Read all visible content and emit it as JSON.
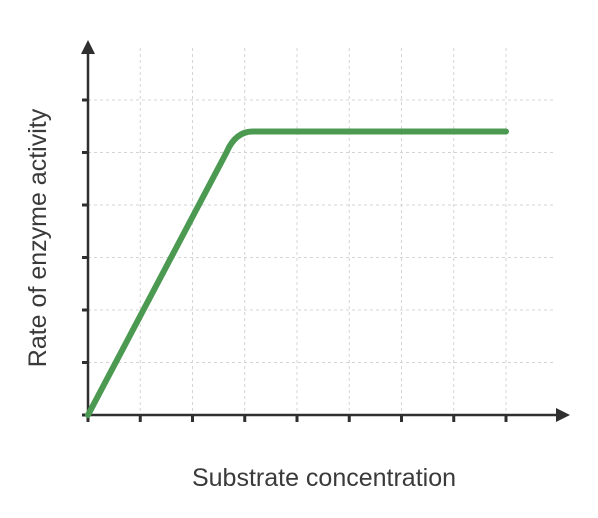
{
  "chart_data": {
    "type": "line",
    "title": "",
    "xlabel": "Substrate concentration",
    "ylabel": "Rate of enzyme activity",
    "xlim": [
      0,
      8
    ],
    "ylim": [
      0,
      6
    ],
    "x_ticks": [
      0,
      1,
      2,
      3,
      4,
      5,
      6,
      7,
      8
    ],
    "y_ticks": [
      0,
      1,
      2,
      3,
      4,
      5,
      6
    ],
    "tick_labels_shown": false,
    "grid": true,
    "grid_style": "dotted",
    "series": [
      {
        "color": "#4c9a52",
        "points": [
          {
            "x": 0,
            "y": 0
          },
          {
            "x": 2.65,
            "y": 5
          },
          {
            "x": 3.15,
            "y": 5.4
          },
          {
            "x": 8,
            "y": 5.4
          }
        ]
      }
    ]
  },
  "colors": {
    "axis": "#2f2f2f",
    "grid": "#d4d4d4",
    "line": "#4c9a52",
    "text": "#3a3a3a"
  }
}
